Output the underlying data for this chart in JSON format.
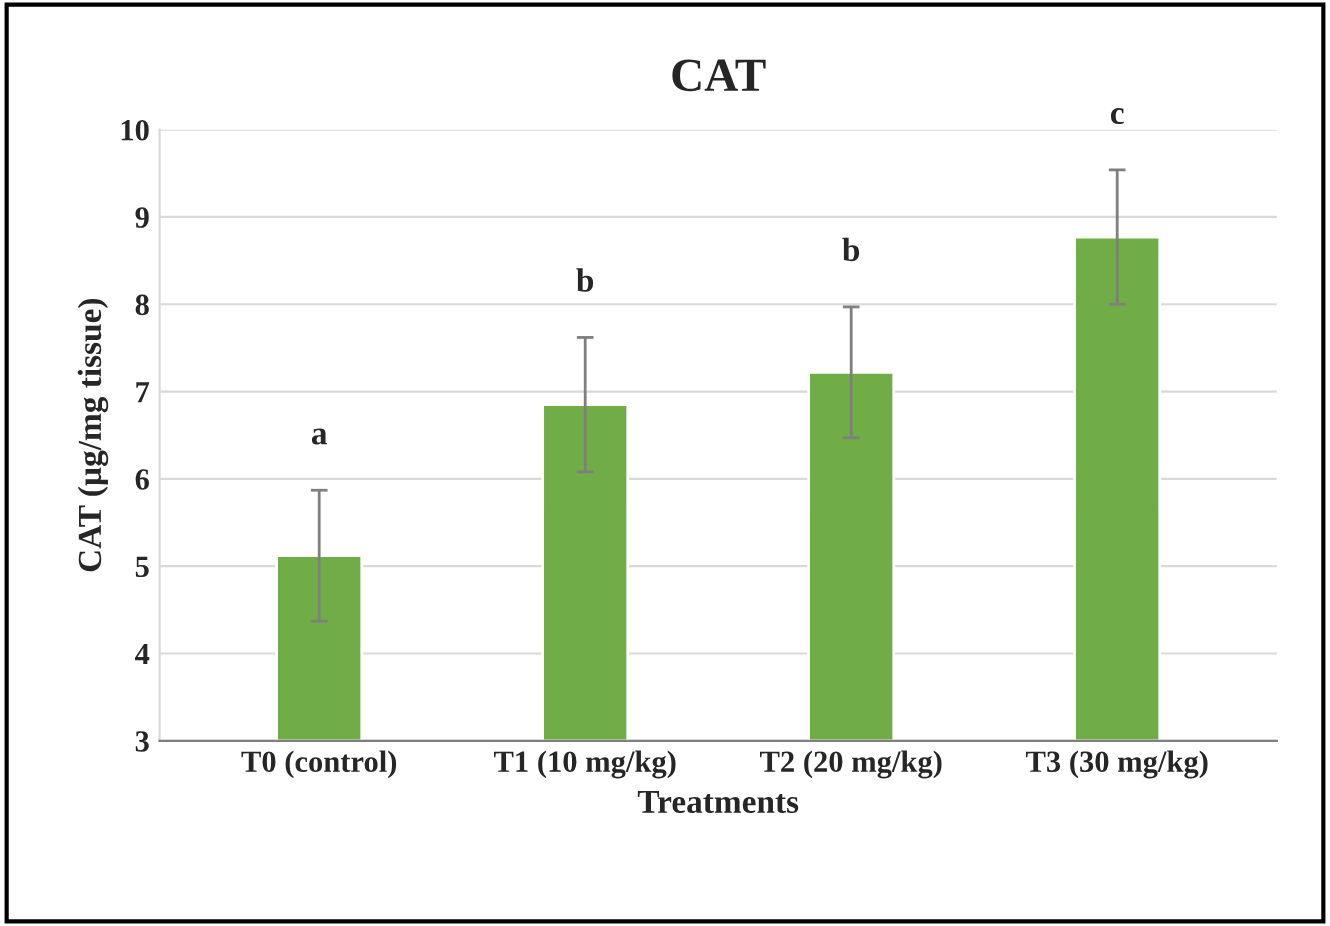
{
  "chart_data": {
    "type": "bar",
    "title": "CAT",
    "xlabel": "Treatments",
    "ylabel": "CAT (µg/mg tissue)",
    "categories": [
      "T0 (control)",
      "T1 (10 mg/kg)",
      "T2 (20 mg/kg)",
      "T3 (30 mg/kg)"
    ],
    "values": [
      5.12,
      6.85,
      7.22,
      8.77
    ],
    "errors": [
      0.75,
      0.77,
      0.75,
      0.77
    ],
    "color": "#70ad47",
    "ylim": [
      3,
      10
    ],
    "yticks": [
      3,
      4,
      5,
      6,
      7,
      8,
      9,
      10
    ],
    "grid": "y",
    "annotations": [
      "a",
      "b",
      "b",
      "c"
    ]
  }
}
